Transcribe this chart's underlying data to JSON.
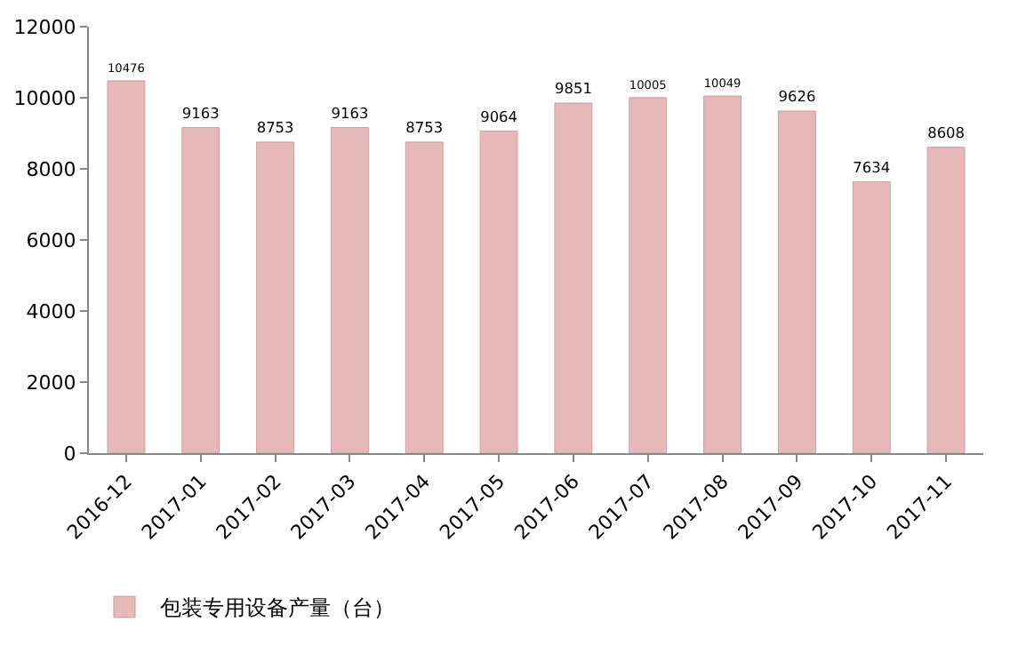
{
  "chart_data": {
    "type": "bar",
    "categories": [
      "2016-12",
      "2017-01",
      "2017-02",
      "2017-03",
      "2017-04",
      "2017-05",
      "2017-06",
      "2017-07",
      "2017-08",
      "2017-09",
      "2017-10",
      "2017-11"
    ],
    "series": [
      {
        "name": "包装专用设备产量（台）",
        "color": "#e6b8b7",
        "values": [
          10476,
          9163,
          8753,
          9163,
          8753,
          9064,
          9851,
          10005,
          10049,
          9626,
          7634,
          8608
        ]
      }
    ],
    "ylim": [
      0,
      12000
    ],
    "yticks": [
      0,
      2000,
      4000,
      6000,
      8000,
      10000,
      12000
    ],
    "data_labels": true,
    "legend": "bottom left",
    "grid": false
  }
}
